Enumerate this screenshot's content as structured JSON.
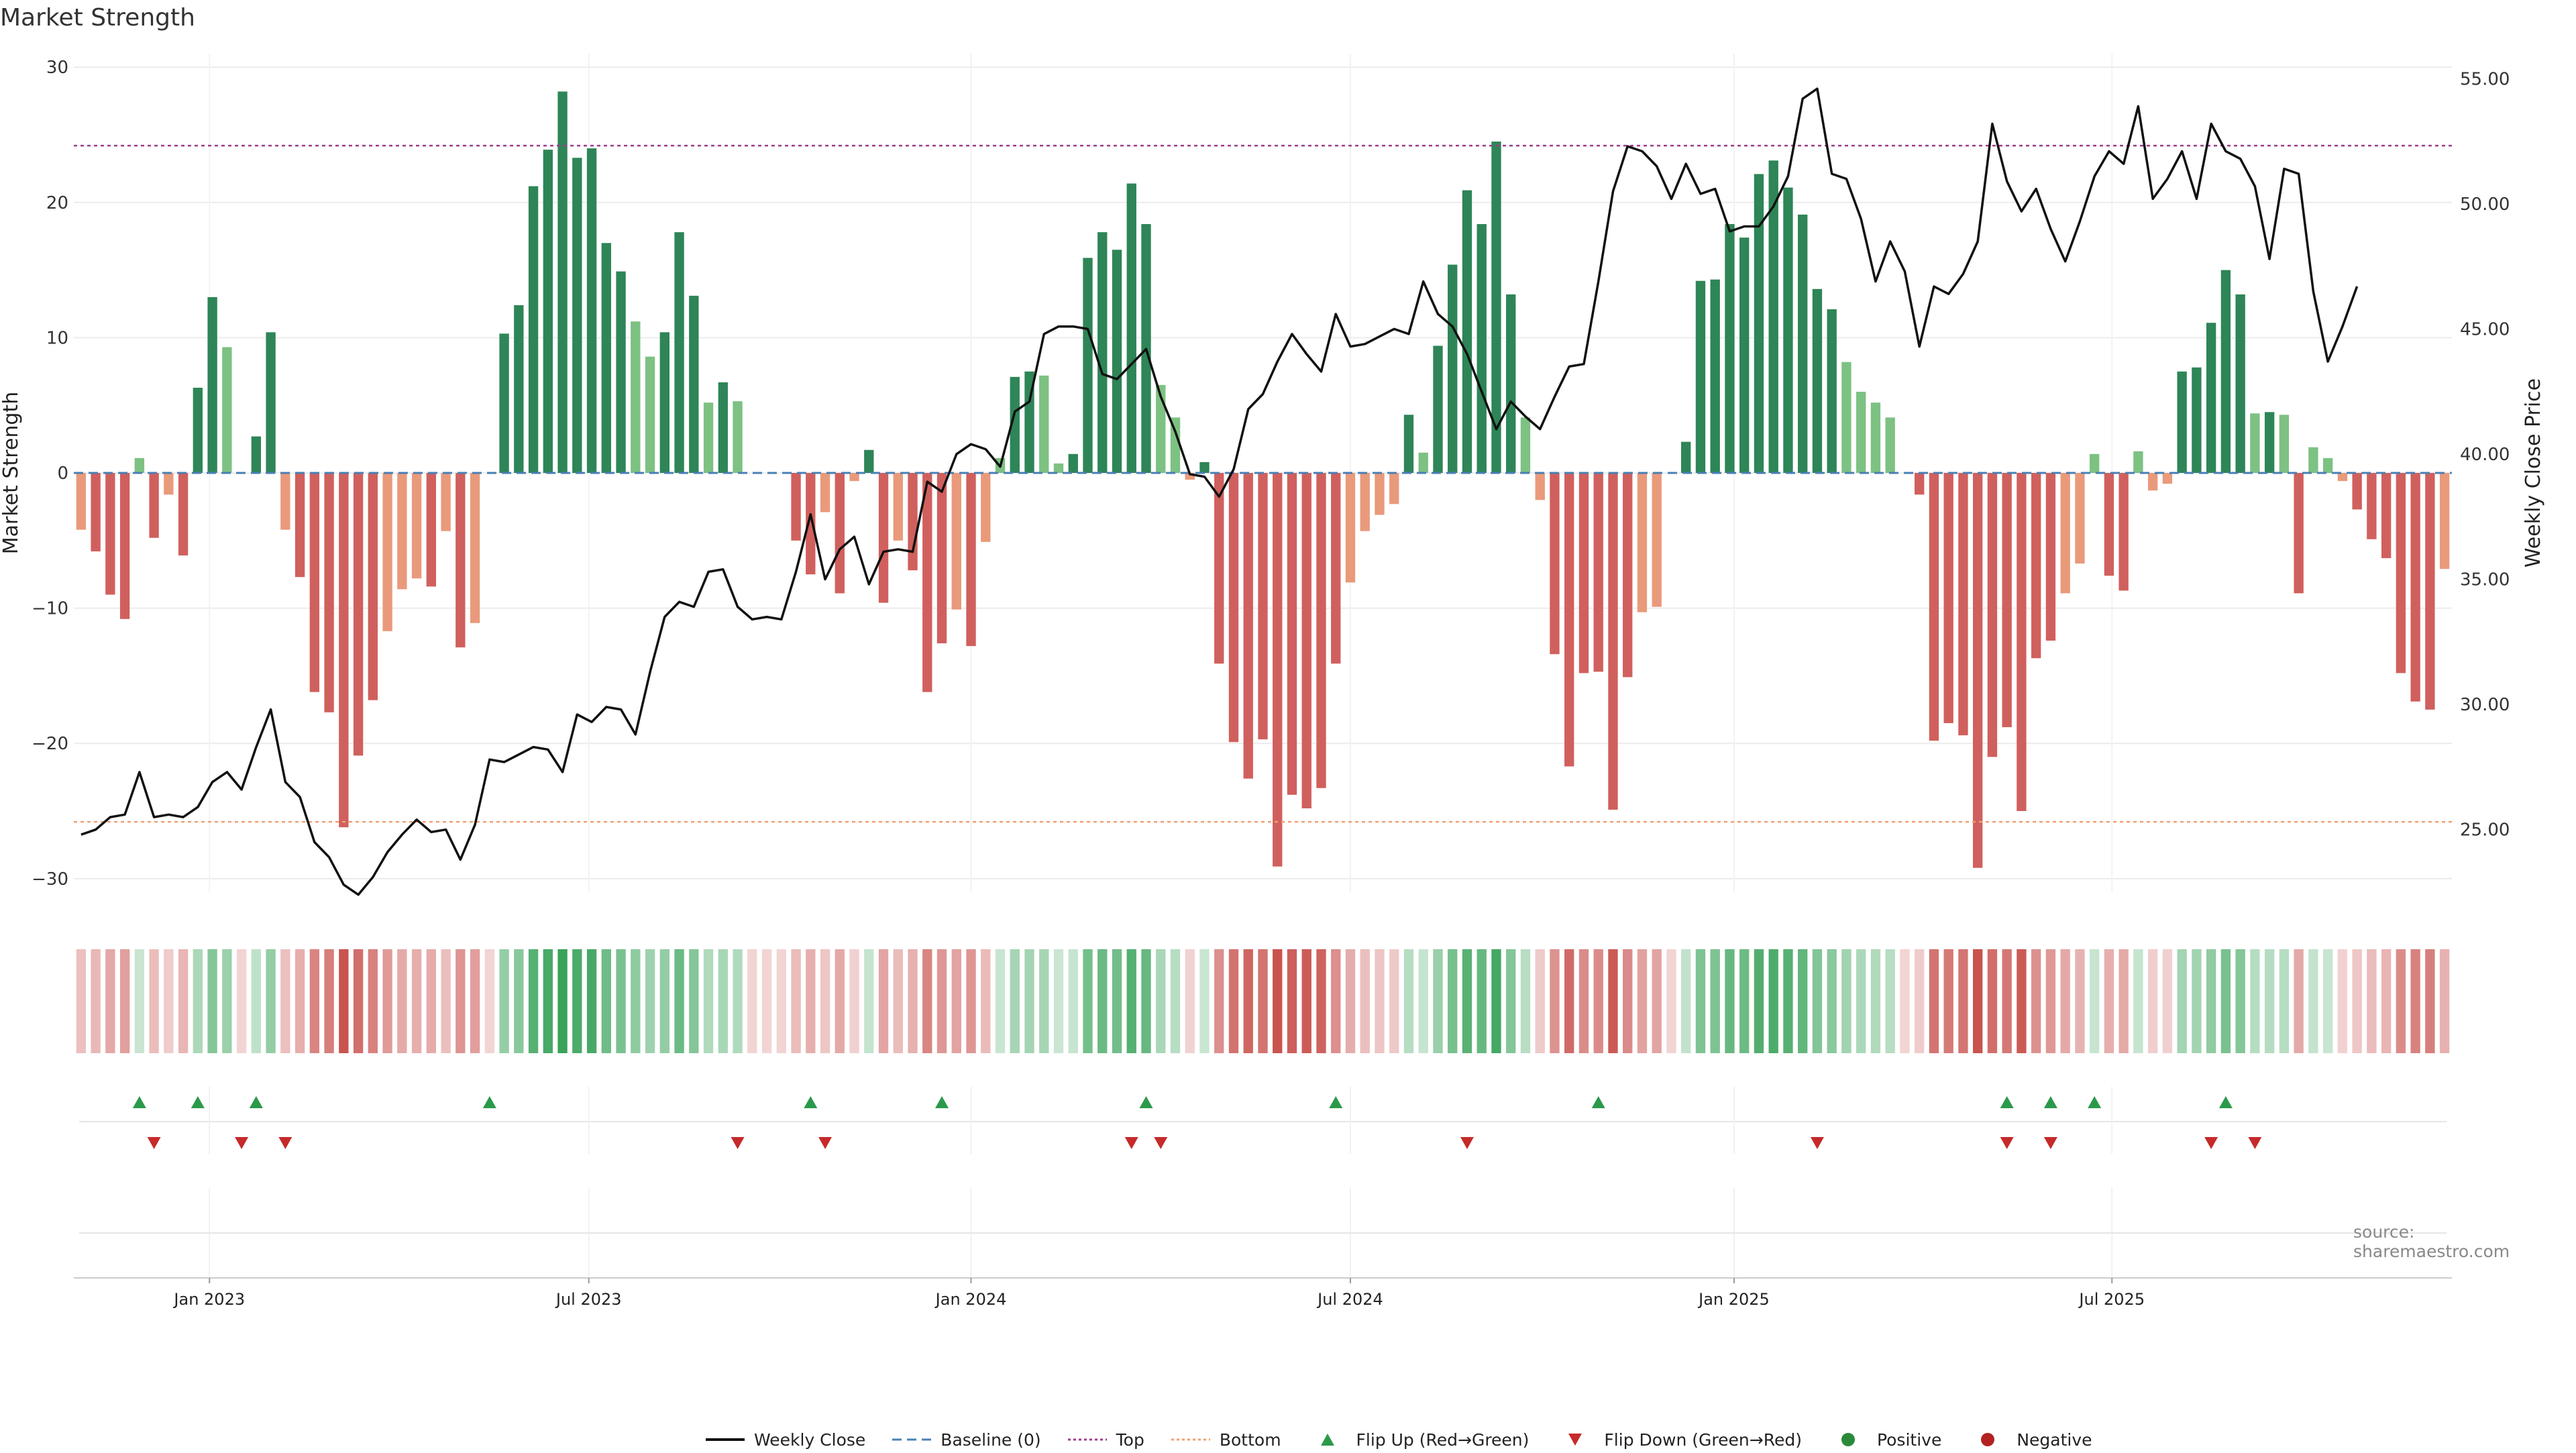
{
  "chart_data": {
    "type": "bar+line",
    "title": "Market Strength",
    "ylabel_left": "Market Strength",
    "ylabel_right": "Weekly Close Price",
    "ylim_left": [
      -31,
      31
    ],
    "ylim_right": [
      22.5,
      56
    ],
    "yticks_left": [
      "−30",
      "−20",
      "−10",
      "0",
      "10",
      "20",
      "30"
    ],
    "yticks_left_values": [
      -30,
      -20,
      -10,
      0,
      10,
      20,
      30
    ],
    "yticks_right": [
      "25.00",
      "30.00",
      "35.00",
      "40.00",
      "45.00",
      "50.00",
      "55.00"
    ],
    "yticks_right_values": [
      25,
      30,
      35,
      40,
      45,
      50,
      55
    ],
    "x_start": "2022-11-07",
    "x_step_days": 7,
    "x_count": 158,
    "xticks": [
      {
        "label": "Jan 2023",
        "index": 9.3
      },
      {
        "label": "Jul 2023",
        "index": 35.3
      },
      {
        "label": "Jan 2024",
        "index": 61.5
      },
      {
        "label": "Jul 2024",
        "index": 87.5
      },
      {
        "label": "Jan 2025",
        "index": 113.8
      },
      {
        "label": "Jul 2025",
        "index": 139.7
      }
    ],
    "top_line": 24.2,
    "bottom_line": -25.8,
    "strength": [
      -4.2,
      -5.8,
      -9,
      -10.8,
      1.1,
      -4.8,
      -1.6,
      -6.1,
      6.3,
      13,
      9.3,
      0,
      2.7,
      10.4,
      -4.2,
      -7.7,
      -16.2,
      -17.7,
      -26.2,
      -20.9,
      -16.8,
      -11.7,
      -8.6,
      -7.8,
      -8.4,
      -4.3,
      -12.9,
      -11.1,
      0,
      10.3,
      12.4,
      21.2,
      23.9,
      28.2,
      23.3,
      24,
      17,
      14.9,
      11.2,
      8.6,
      10.4,
      17.8,
      13.1,
      5.2,
      6.7,
      5.3,
      0,
      0,
      0,
      -5,
      -7.5,
      -2.9,
      -8.9,
      -0.6,
      1.7,
      -9.6,
      -5,
      -7.2,
      -16.2,
      -12.6,
      -10.1,
      -12.8,
      -5.1,
      1.1,
      7.1,
      7.5,
      7.2,
      0.7,
      1.4,
      15.9,
      17.8,
      16.5,
      21.4,
      18.4,
      6.5,
      4.1,
      -0.5,
      0.8,
      -14.1,
      -19.9,
      -22.6,
      -19.7,
      -29.1,
      -23.8,
      -24.8,
      -23.3,
      -14.1,
      -8.1,
      -4.3,
      -3.1,
      -2.3,
      4.3,
      1.5,
      9.4,
      15.4,
      20.9,
      18.4,
      24.5,
      13.2,
      4.1,
      -2,
      -13.4,
      -21.7,
      -14.8,
      -14.7,
      -24.9,
      -15.1,
      -10.3,
      -9.9,
      0,
      2.3,
      14.2,
      14.3,
      18.4,
      17.4,
      22.1,
      23.1,
      21.1,
      19.1,
      13.6,
      12.1,
      8.2,
      6,
      5.2,
      4.1,
      0,
      -1.6,
      -19.8,
      -18.5,
      -19.4,
      -29.2,
      -21,
      -18.8,
      -25,
      -13.7,
      -12.4,
      -8.9,
      -6.7,
      1.4,
      -7.6,
      -8.7,
      1.6,
      -1.3,
      -0.8,
      7.5,
      7.8,
      11.1,
      15,
      13.2,
      4.4,
      4.5,
      4.3,
      -8.9,
      1.9,
      1.1,
      -0.6,
      -2.7,
      -4.9,
      -6.3,
      -14.8,
      -16.9,
      -17.5,
      -7.1
    ],
    "weekly_close": [
      24.8,
      25,
      25.5,
      25.6,
      27.3,
      25.5,
      25.6,
      25.5,
      25.9,
      26.9,
      27.3,
      26.6,
      28.3,
      29.8,
      26.9,
      26.3,
      24.5,
      23.9,
      22.8,
      22.4,
      23.1,
      24.1,
      24.8,
      25.4,
      24.9,
      25,
      23.8,
      25.2,
      27.8,
      27.7,
      28,
      28.3,
      28.2,
      27.3,
      29.6,
      29.3,
      29.9,
      29.8,
      28.8,
      31.3,
      33.5,
      34.1,
      33.9,
      35.3,
      35.4,
      33.9,
      33.4,
      33.5,
      33.4,
      35.3,
      37.6,
      35,
      36.2,
      36.7,
      34.8,
      36.1,
      36.2,
      36.1,
      38.9,
      38.5,
      40,
      40.4,
      40.2,
      39.5,
      41.7,
      42.1,
      44.8,
      45.1,
      45.1,
      45,
      43.2,
      43,
      43.6,
      44.2,
      42.3,
      40.9,
      39.2,
      39.1,
      38.3,
      39.4,
      41.8,
      42.4,
      43.7,
      44.8,
      44,
      43.3,
      45.6,
      44.3,
      44.4,
      44.7,
      45,
      44.8,
      46.9,
      45.6,
      45.1,
      44,
      42.5,
      41,
      42.1,
      41.5,
      41,
      42.3,
      43.5,
      43.6,
      46.9,
      50.5,
      52.3,
      52.1,
      51.5,
      50.2,
      51.6,
      50.4,
      50.6,
      48.9,
      49.1,
      49.1,
      49.9,
      51.1,
      54.2,
      54.6,
      51.2,
      51,
      49.4,
      46.9,
      48.5,
      47.3,
      44.3,
      46.7,
      46.4,
      47.2,
      48.5,
      53.2,
      50.9,
      49.7,
      50.6,
      49,
      47.7,
      49.3,
      51.1,
      52.1,
      51.6,
      53.9,
      50.2,
      51,
      52.1,
      50.2,
      53.2,
      52.1,
      51.8,
      50.7,
      47.8,
      51.4,
      51.2,
      46.5,
      43.7,
      45.1,
      46.7
    ],
    "flip_up_indices": [
      4,
      8,
      12,
      28,
      50,
      59,
      73,
      86,
      104,
      132,
      135,
      138,
      147
    ],
    "flip_down_indices": [
      5,
      11,
      14,
      45,
      51,
      72,
      74,
      95,
      119,
      132,
      135,
      146,
      149
    ],
    "legend": [
      {
        "label": "Weekly Close",
        "kind": "line-solid",
        "color": "#111111"
      },
      {
        "label": "Baseline (0)",
        "kind": "line-dash",
        "color": "#4a7fb5"
      },
      {
        "label": "Top",
        "kind": "line-dot",
        "color": "#9b3c8f"
      },
      {
        "label": "Bottom",
        "kind": "line-dot",
        "color": "#f0a070"
      },
      {
        "label": "Flip Up (Red→Green)",
        "kind": "tri-up",
        "color": "#2a9a4a"
      },
      {
        "label": "Flip Down (Green→Red)",
        "kind": "tri-down",
        "color": "#c62a2a"
      },
      {
        "label": "Positive",
        "kind": "circle",
        "color": "#2a8a3a"
      },
      {
        "label": "Negative",
        "kind": "circle",
        "color": "#b22222"
      }
    ],
    "colors": {
      "pos_strong": "#2e8557",
      "pos_weak": "#7dc183",
      "neg_strong": "#d0605d",
      "neg_weak": "#e99a7b",
      "line": "#111111",
      "baseline": "#4a7fb5",
      "top": "#9b3c8f",
      "bottom": "#f0a070",
      "flip_up": "#2a9a4a",
      "flip_down": "#c62a2a"
    }
  },
  "source_text": "source: sharemaestro.com"
}
